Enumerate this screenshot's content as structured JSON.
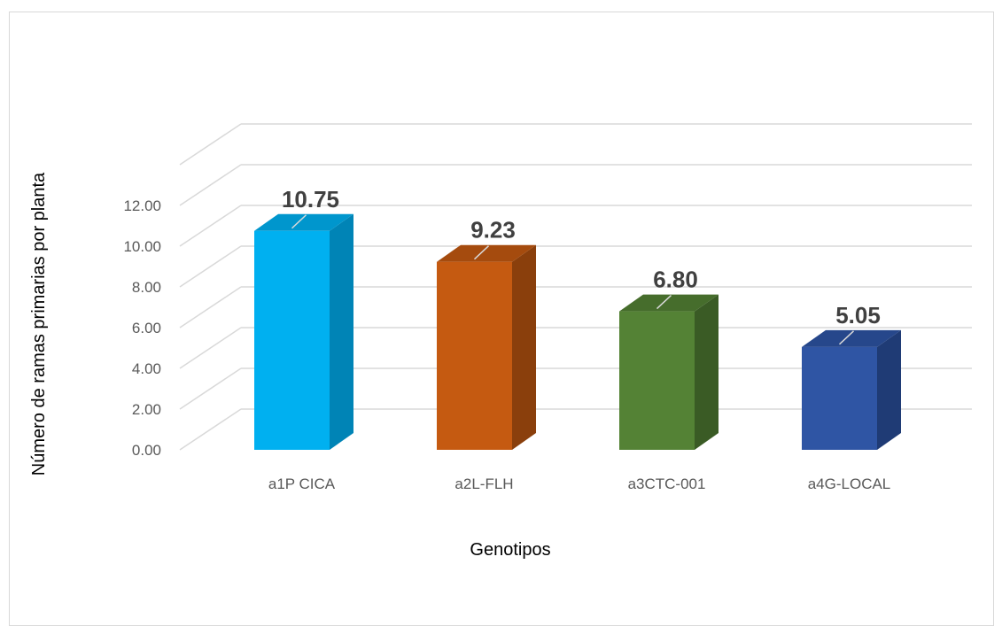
{
  "chart_data": {
    "type": "bar",
    "style": "3d-column",
    "categories": [
      "a1P CICA",
      "a2L-FLH",
      "a3CTC-001",
      "a4G-LOCAL"
    ],
    "values": [
      10.75,
      9.23,
      6.8,
      5.05
    ],
    "value_labels": [
      "10.75",
      "9.23",
      "6.80",
      "5.05"
    ],
    "title": "",
    "xlabel": "Genotipos",
    "ylabel": "Número de ramas primarias por planta",
    "ylim": [
      0,
      12
    ],
    "y_ticks": [
      "0.00",
      "2.00",
      "4.00",
      "6.00",
      "8.00",
      "10.00",
      "12.00"
    ],
    "grid": true,
    "legend": "none",
    "colors": {
      "bars": [
        {
          "front": "#00b0f0",
          "side": "#0084b6",
          "top": "#0096cd"
        },
        {
          "front": "#c55a11",
          "side": "#8a3f0c",
          "top": "#a54b0e"
        },
        {
          "front": "#548235",
          "side": "#3a5b25",
          "top": "#466d2c"
        },
        {
          "front": "#2f55a4",
          "side": "#1f3b75",
          "top": "#26478b"
        }
      ],
      "grid": "#d9d9d9",
      "tick_text": "#595959",
      "data_label": "#404040"
    }
  }
}
